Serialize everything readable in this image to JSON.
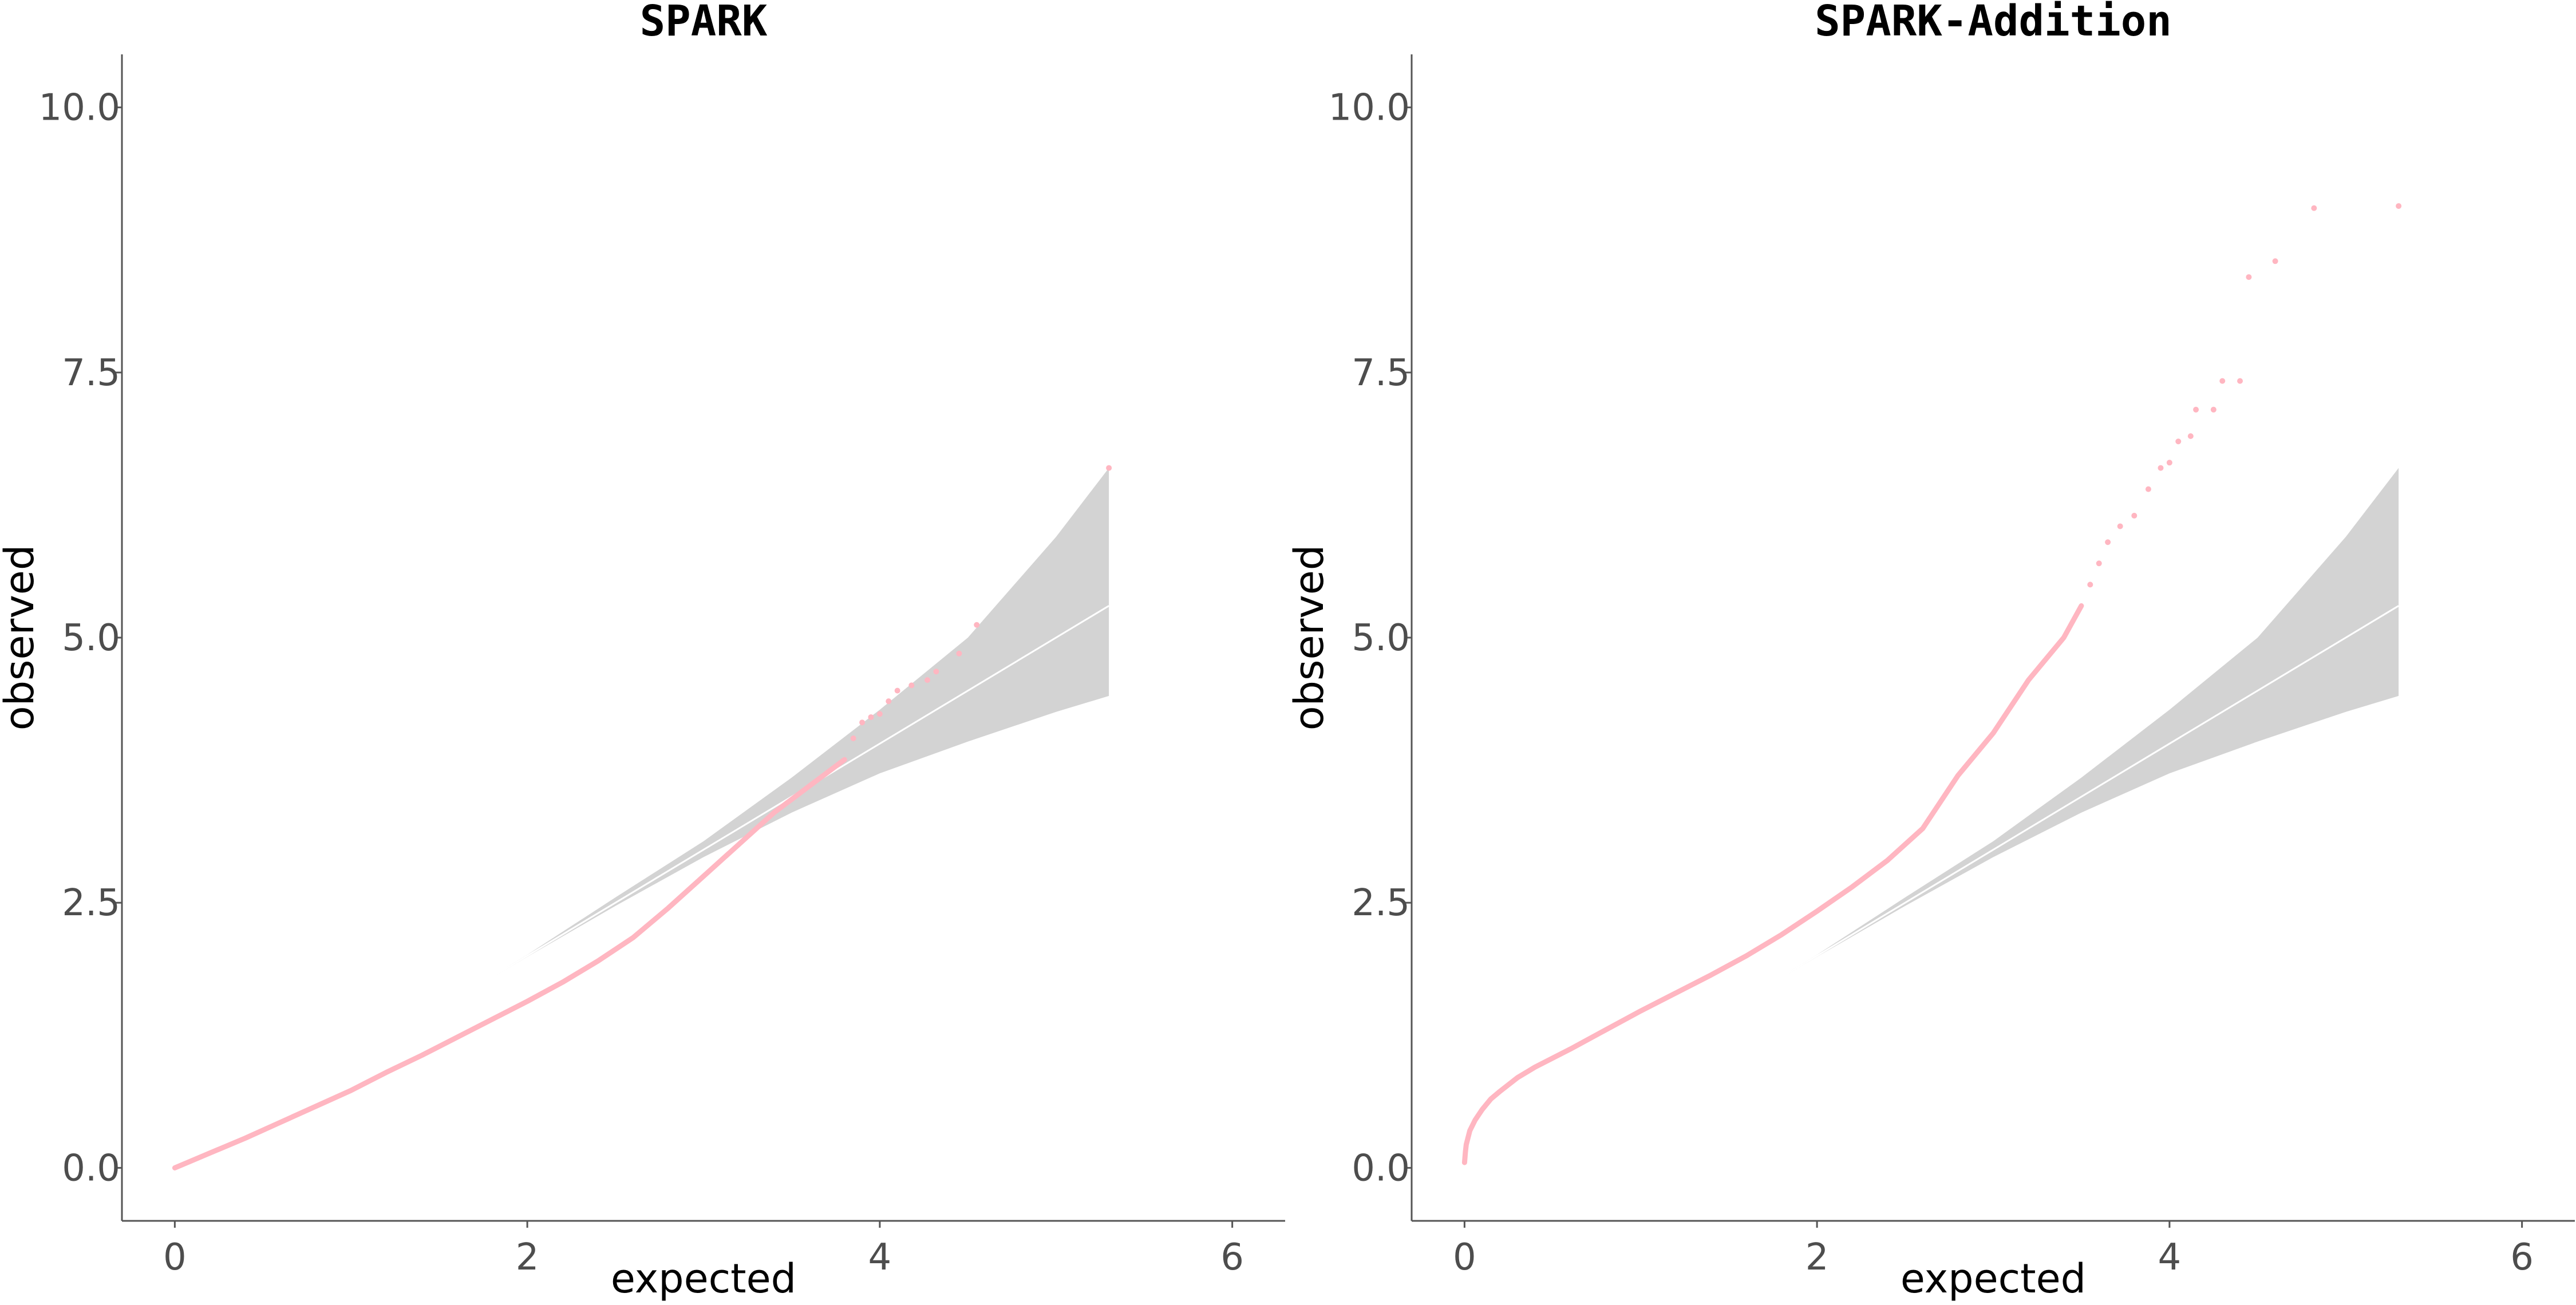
{
  "colors": {
    "points": "#ffb6c1",
    "band": "#d3d3d3",
    "diagonal": "#ffffff",
    "axis": "#555555",
    "tick_text": "#4d4d4d"
  },
  "chart_data": [
    {
      "type": "scatter",
      "title": "SPARK",
      "xlabel": "expected",
      "ylabel": "observed",
      "xlim": [
        -0.3,
        6.3
      ],
      "ylim": [
        -0.5,
        10.5
      ],
      "xticks": [
        0,
        2,
        4,
        6
      ],
      "xtick_labels": [
        "0",
        "2",
        "4",
        "6"
      ],
      "yticks": [
        0,
        2.5,
        5,
        7.5,
        10
      ],
      "ytick_labels": [
        "0.0",
        "2.5",
        "5.0",
        "7.5",
        "10.0"
      ],
      "grid": false,
      "reference_line": {
        "x": [
          1.2,
          5.3
        ],
        "y": [
          1.2,
          5.3
        ]
      },
      "confidence_band": {
        "x": [
          1.2,
          2.0,
          2.5,
          3.0,
          3.5,
          4.0,
          4.5,
          5.0,
          5.3
        ],
        "lower": [
          1.2,
          1.99,
          2.47,
          2.93,
          3.35,
          3.72,
          4.02,
          4.3,
          4.45
        ],
        "upper": [
          1.2,
          2.01,
          2.55,
          3.08,
          3.68,
          4.32,
          5.0,
          5.95,
          6.6
        ]
      },
      "observed_curve": {
        "x": [
          0.0,
          0.2,
          0.4,
          0.6,
          0.8,
          1.0,
          1.2,
          1.4,
          1.6,
          1.8,
          2.0,
          2.2,
          2.4,
          2.6,
          2.8,
          3.0,
          3.2,
          3.4,
          3.6,
          3.8
        ],
        "y": [
          0.0,
          0.14,
          0.28,
          0.43,
          0.58,
          0.73,
          0.9,
          1.06,
          1.23,
          1.4,
          1.57,
          1.75,
          1.95,
          2.17,
          2.45,
          2.75,
          3.05,
          3.35,
          3.6,
          3.85
        ]
      },
      "tail_points": [
        {
          "x": 3.85,
          "y": 4.05
        },
        {
          "x": 3.9,
          "y": 4.2
        },
        {
          "x": 3.95,
          "y": 4.25
        },
        {
          "x": 4.0,
          "y": 4.28
        },
        {
          "x": 4.05,
          "y": 4.4
        },
        {
          "x": 4.1,
          "y": 4.5
        },
        {
          "x": 4.18,
          "y": 4.55
        },
        {
          "x": 4.27,
          "y": 4.6
        },
        {
          "x": 4.32,
          "y": 4.68
        },
        {
          "x": 4.45,
          "y": 4.85
        },
        {
          "x": 4.55,
          "y": 5.12
        },
        {
          "x": 5.3,
          "y": 6.6
        }
      ]
    },
    {
      "type": "scatter",
      "title": "SPARK-Addition",
      "xlabel": "expected",
      "ylabel": "observed",
      "xlim": [
        -0.3,
        6.3
      ],
      "ylim": [
        -0.5,
        10.5
      ],
      "xticks": [
        0,
        2,
        4,
        6
      ],
      "xtick_labels": [
        "0",
        "2",
        "4",
        "6"
      ],
      "yticks": [
        0,
        2.5,
        5,
        7.5,
        10
      ],
      "ytick_labels": [
        "0.0",
        "2.5",
        "5.0",
        "7.5",
        "10.0"
      ],
      "grid": false,
      "reference_line": {
        "x": [
          1.2,
          5.3
        ],
        "y": [
          1.2,
          5.3
        ]
      },
      "confidence_band": {
        "x": [
          1.2,
          2.0,
          2.5,
          3.0,
          3.5,
          4.0,
          4.5,
          5.0,
          5.3
        ],
        "lower": [
          1.2,
          1.99,
          2.47,
          2.93,
          3.35,
          3.72,
          4.02,
          4.3,
          4.45
        ],
        "upper": [
          1.2,
          2.01,
          2.55,
          3.08,
          3.68,
          4.32,
          5.0,
          5.95,
          6.6
        ]
      },
      "observed_curve": {
        "x": [
          0.0,
          0.005,
          0.01,
          0.03,
          0.06,
          0.1,
          0.15,
          0.2,
          0.3,
          0.4,
          0.6,
          0.8,
          1.0,
          1.2,
          1.4,
          1.6,
          1.8,
          2.0,
          2.2,
          2.4,
          2.6,
          2.8,
          3.0,
          3.2,
          3.4,
          3.5
        ],
        "y": [
          0.05,
          0.15,
          0.22,
          0.35,
          0.45,
          0.55,
          0.65,
          0.72,
          0.85,
          0.95,
          1.12,
          1.3,
          1.48,
          1.65,
          1.82,
          2.0,
          2.2,
          2.42,
          2.65,
          2.9,
          3.2,
          3.7,
          4.1,
          4.6,
          5.0,
          5.3
        ]
      },
      "tail_points": [
        {
          "x": 3.55,
          "y": 5.5
        },
        {
          "x": 3.6,
          "y": 5.7
        },
        {
          "x": 3.65,
          "y": 5.9
        },
        {
          "x": 3.72,
          "y": 6.05
        },
        {
          "x": 3.8,
          "y": 6.15
        },
        {
          "x": 3.88,
          "y": 6.4
        },
        {
          "x": 3.95,
          "y": 6.6
        },
        {
          "x": 4.0,
          "y": 6.65
        },
        {
          "x": 4.05,
          "y": 6.85
        },
        {
          "x": 4.12,
          "y": 6.9
        },
        {
          "x": 4.15,
          "y": 7.15
        },
        {
          "x": 4.25,
          "y": 7.15
        },
        {
          "x": 4.3,
          "y": 7.42
        },
        {
          "x": 4.4,
          "y": 7.42
        },
        {
          "x": 4.45,
          "y": 8.4
        },
        {
          "x": 4.6,
          "y": 8.55
        },
        {
          "x": 4.82,
          "y": 9.05
        },
        {
          "x": 5.3,
          "y": 9.07
        }
      ]
    }
  ]
}
